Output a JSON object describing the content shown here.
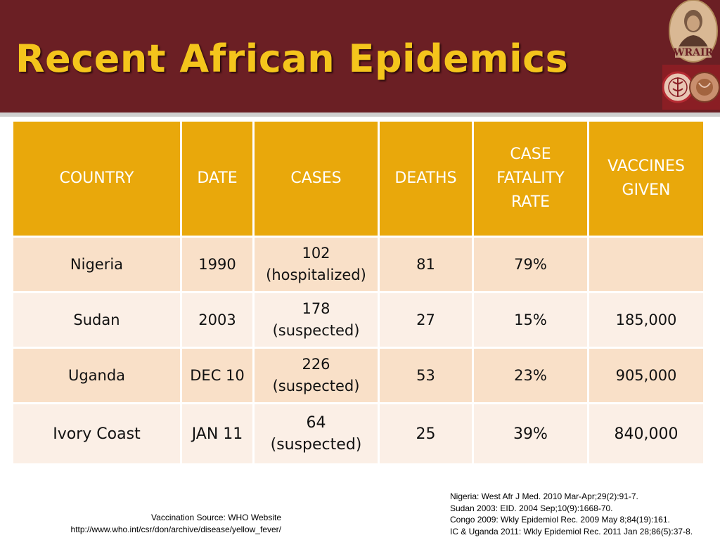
{
  "slide": {
    "title": "Recent African Epidemics",
    "logo_text": "WRAIR"
  },
  "colors": {
    "header_bg": "#6b1f24",
    "title_color": "#f4c51c",
    "table_header_bg": "#e9a80b",
    "row_odd_bg": "#f9e0c8",
    "row_even_bg": "#fbefe6"
  },
  "table": {
    "headers": [
      "COUNTRY",
      "DATE",
      "CASES",
      "DEATHS",
      "CASE\nFATALITY\nRATE",
      "VACCINES\nGIVEN"
    ],
    "rows": [
      {
        "country": "Nigeria",
        "date": "1990",
        "cases": "102\n(hospitalized)",
        "deaths": "81",
        "cfr": "79%",
        "vaccines": ""
      },
      {
        "country": "Sudan",
        "date": "2003",
        "cases": "178\n(suspected)",
        "deaths": "27",
        "cfr": "15%",
        "vaccines": "185,000"
      },
      {
        "country": "Uganda",
        "date": "DEC 10",
        "cases": "226\n(suspected)",
        "deaths": "53",
        "cfr": "23%",
        "vaccines": "905,000"
      },
      {
        "country": "Ivory Coast",
        "date": "JAN 11",
        "cases": "64\n(suspected)",
        "deaths": "25",
        "cfr": "39%",
        "vaccines": "840,000"
      }
    ]
  },
  "footer": {
    "vaccination_source": "Vaccination Source: WHO Website",
    "vaccination_url": "http://www.who.int/csr/don/archive/disease/yellow_fever/",
    "references": [
      "Nigeria: West Afr J Med. 2010 Mar-Apr;29(2):91-7.",
      "Sudan 2003: EID. 2004 Sep;10(9):1668-70.",
      "Congo 2009: Wkly Epidemiol Rec. 2009 May 8;84(19):161.",
      "IC & Uganda 2011: Wkly Epidemiol Rec. 2011 Jan 28;86(5):37-8."
    ]
  }
}
